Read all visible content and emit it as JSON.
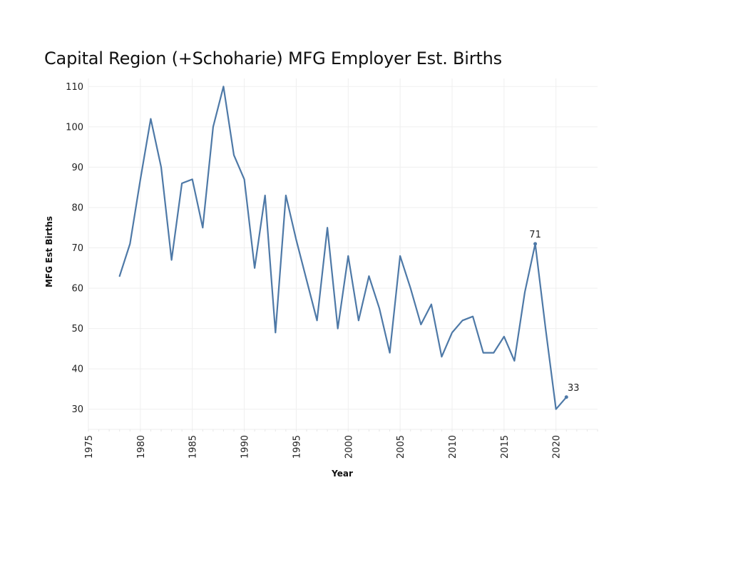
{
  "chart_data": {
    "type": "line",
    "title": "Capital Region (+Schoharie) MFG Employer Est. Births",
    "xlabel": "Year",
    "ylabel": "MFG Est Births",
    "xlim": [
      1975,
      2024
    ],
    "ylim": [
      25,
      112
    ],
    "grid": true,
    "x_ticks": [
      "1975",
      "1980",
      "1985",
      "1990",
      "1995",
      "2000",
      "2005",
      "2010",
      "2015",
      "2020"
    ],
    "y_ticks": [
      "30",
      "40",
      "50",
      "60",
      "70",
      "80",
      "90",
      "100",
      "110"
    ],
    "line_color": "#4e79a7",
    "series": [
      {
        "name": "MFG Est Births",
        "x": [
          1978,
          1979,
          1980,
          1981,
          1982,
          1983,
          1984,
          1985,
          1986,
          1987,
          1988,
          1989,
          1990,
          1991,
          1992,
          1993,
          1994,
          1995,
          1996,
          1997,
          1998,
          1999,
          2000,
          2001,
          2002,
          2003,
          2004,
          2005,
          2006,
          2007,
          2008,
          2009,
          2010,
          2011,
          2012,
          2013,
          2014,
          2015,
          2016,
          2017,
          2018,
          2019,
          2020,
          2021
        ],
        "values": [
          63,
          71,
          87,
          102,
          90,
          67,
          86,
          87,
          75,
          100,
          110,
          93,
          87,
          65,
          83,
          49,
          83,
          72,
          62,
          52,
          75,
          50,
          68,
          52,
          63,
          55,
          44,
          68,
          60,
          51,
          56,
          43,
          49,
          52,
          53,
          44,
          44,
          48,
          42,
          59,
          71,
          50,
          30,
          33
        ]
      }
    ],
    "annotations": [
      {
        "x": 2018,
        "y": 71,
        "text": "71"
      },
      {
        "x": 2021,
        "y": 33,
        "text": "33"
      }
    ]
  }
}
